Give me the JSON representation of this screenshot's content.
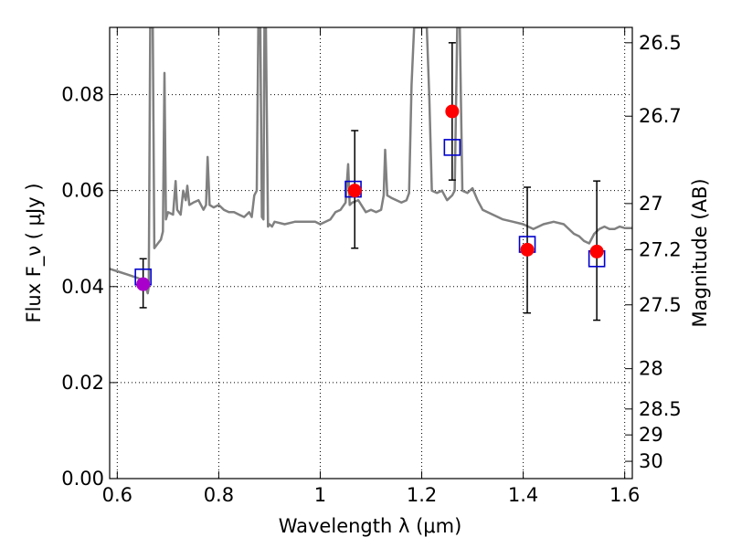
{
  "chart_data": {
    "type": "scatter",
    "title": "",
    "xlabel": "Wavelength  λ (μm)",
    "ylabel": "Flux  F_ν  ( μJy )",
    "ylabel_right": "Magnitude (AB)",
    "xlim": [
      0.585,
      1.615
    ],
    "ylim": [
      0.0,
      0.094
    ],
    "grid": true,
    "grid_style": "dotted",
    "x_ticks": [
      0.6,
      0.8,
      1.0,
      1.2,
      1.4,
      1.6
    ],
    "x_tick_labels": [
      "0.6",
      "0.8",
      "1",
      "1.2",
      "1.4",
      "1.6"
    ],
    "y_ticks": [
      0.0,
      0.02,
      0.04,
      0.06,
      0.08
    ],
    "y_tick_labels": [
      "0.00",
      "0.02",
      "0.04",
      "0.06",
      "0.08"
    ],
    "right_ticks": [
      {
        "label": "26.5",
        "flux": 0.0908
      },
      {
        "label": "26.7",
        "flux": 0.0755
      },
      {
        "label": "27",
        "flux": 0.0573
      },
      {
        "label": "27.2",
        "flux": 0.0477
      },
      {
        "label": "27.5",
        "flux": 0.0362
      },
      {
        "label": "28",
        "flux": 0.0229
      },
      {
        "label": "28.5",
        "flux": 0.0145
      },
      {
        "label": "29",
        "flux": 0.0091
      },
      {
        "label": "30",
        "flux": 0.0036
      }
    ],
    "series": [
      {
        "kind": "line",
        "color": "#808080",
        "points": [
          [
            0.585,
            0.0437
          ],
          [
            0.6,
            0.0432
          ],
          [
            0.62,
            0.0425
          ],
          [
            0.64,
            0.0418
          ],
          [
            0.652,
            0.0412
          ],
          [
            0.66,
            0.0386
          ],
          [
            0.662,
            0.04
          ],
          [
            0.665,
            0.094
          ],
          [
            0.67,
            0.094
          ],
          [
            0.673,
            0.048
          ],
          [
            0.68,
            0.049
          ],
          [
            0.686,
            0.0498
          ],
          [
            0.69,
            0.0515
          ],
          [
            0.693,
            0.0845
          ],
          [
            0.696,
            0.054
          ],
          [
            0.7,
            0.0555
          ],
          [
            0.71,
            0.055
          ],
          [
            0.715,
            0.062
          ],
          [
            0.718,
            0.056
          ],
          [
            0.725,
            0.055
          ],
          [
            0.73,
            0.06
          ],
          [
            0.735,
            0.058
          ],
          [
            0.738,
            0.061
          ],
          [
            0.742,
            0.057
          ],
          [
            0.75,
            0.0575
          ],
          [
            0.76,
            0.058
          ],
          [
            0.77,
            0.056
          ],
          [
            0.775,
            0.057
          ],
          [
            0.778,
            0.067
          ],
          [
            0.782,
            0.057
          ],
          [
            0.79,
            0.0565
          ],
          [
            0.8,
            0.057
          ],
          [
            0.81,
            0.056
          ],
          [
            0.82,
            0.0555
          ],
          [
            0.83,
            0.0555
          ],
          [
            0.84,
            0.055
          ],
          [
            0.85,
            0.0545
          ],
          [
            0.86,
            0.0555
          ],
          [
            0.865,
            0.0545
          ],
          [
            0.87,
            0.059
          ],
          [
            0.875,
            0.06
          ],
          [
            0.878,
            0.094
          ],
          [
            0.882,
            0.094
          ],
          [
            0.885,
            0.0545
          ],
          [
            0.888,
            0.054
          ],
          [
            0.89,
            0.094
          ],
          [
            0.893,
            0.094
          ],
          [
            0.897,
            0.0525
          ],
          [
            0.9,
            0.053
          ],
          [
            0.905,
            0.0525
          ],
          [
            0.91,
            0.0535
          ],
          [
            0.93,
            0.053
          ],
          [
            0.95,
            0.0535
          ],
          [
            0.97,
            0.0535
          ],
          [
            0.99,
            0.0535
          ],
          [
            1.0,
            0.053
          ],
          [
            1.02,
            0.054
          ],
          [
            1.03,
            0.0555
          ],
          [
            1.04,
            0.056
          ],
          [
            1.05,
            0.0575
          ],
          [
            1.055,
            0.0655
          ],
          [
            1.058,
            0.057
          ],
          [
            1.063,
            0.0575
          ],
          [
            1.075,
            0.058
          ],
          [
            1.09,
            0.0555
          ],
          [
            1.1,
            0.056
          ],
          [
            1.11,
            0.0555
          ],
          [
            1.12,
            0.056
          ],
          [
            1.125,
            0.059
          ],
          [
            1.128,
            0.0685
          ],
          [
            1.132,
            0.059
          ],
          [
            1.14,
            0.0585
          ],
          [
            1.16,
            0.0575
          ],
          [
            1.17,
            0.058
          ],
          [
            1.175,
            0.0595
          ],
          [
            1.18,
            0.082
          ],
          [
            1.185,
            0.094
          ],
          [
            1.2,
            0.094
          ],
          [
            1.21,
            0.094
          ],
          [
            1.215,
            0.079
          ],
          [
            1.22,
            0.06
          ],
          [
            1.23,
            0.0595
          ],
          [
            1.24,
            0.06
          ],
          [
            1.25,
            0.058
          ],
          [
            1.26,
            0.059
          ],
          [
            1.265,
            0.06
          ],
          [
            1.27,
            0.094
          ],
          [
            1.275,
            0.094
          ],
          [
            1.28,
            0.06
          ],
          [
            1.29,
            0.0595
          ],
          [
            1.3,
            0.0605
          ],
          [
            1.31,
            0.058
          ],
          [
            1.32,
            0.056
          ],
          [
            1.34,
            0.055
          ],
          [
            1.36,
            0.054
          ],
          [
            1.38,
            0.0535
          ],
          [
            1.4,
            0.053
          ],
          [
            1.42,
            0.052
          ],
          [
            1.44,
            0.053
          ],
          [
            1.46,
            0.0535
          ],
          [
            1.48,
            0.053
          ],
          [
            1.5,
            0.051
          ],
          [
            1.51,
            0.0505
          ],
          [
            1.52,
            0.0495
          ],
          [
            1.53,
            0.049
          ],
          [
            1.54,
            0.051
          ],
          [
            1.55,
            0.052
          ],
          [
            1.56,
            0.0525
          ],
          [
            1.57,
            0.052
          ],
          [
            1.58,
            0.052
          ],
          [
            1.59,
            0.0525
          ],
          [
            1.6,
            0.0522
          ],
          [
            1.615,
            0.0522
          ]
        ]
      },
      {
        "kind": "errorbar",
        "color": "#000000",
        "points": [
          {
            "x": 0.651,
            "low": 0.0356,
            "high": 0.0458
          },
          {
            "x": 1.068,
            "low": 0.048,
            "high": 0.0725
          },
          {
            "x": 1.26,
            "low": 0.0622,
            "high": 0.0908
          },
          {
            "x": 1.408,
            "low": 0.0345,
            "high": 0.0607
          },
          {
            "x": 1.545,
            "low": 0.033,
            "high": 0.062
          }
        ]
      },
      {
        "kind": "square",
        "color": "#0000cc",
        "points": [
          [
            0.651,
            0.042
          ],
          [
            1.065,
            0.0603
          ],
          [
            1.26,
            0.069
          ],
          [
            1.408,
            0.0488
          ],
          [
            1.545,
            0.0458
          ]
        ]
      },
      {
        "kind": "circle",
        "color": "#ff0000",
        "points": [
          [
            1.068,
            0.06
          ],
          [
            1.26,
            0.0765
          ],
          [
            1.408,
            0.0477
          ],
          [
            1.545,
            0.0473
          ]
        ]
      },
      {
        "kind": "circle",
        "color": "#aa00cc",
        "points": [
          [
            0.651,
            0.0405
          ]
        ]
      }
    ]
  }
}
